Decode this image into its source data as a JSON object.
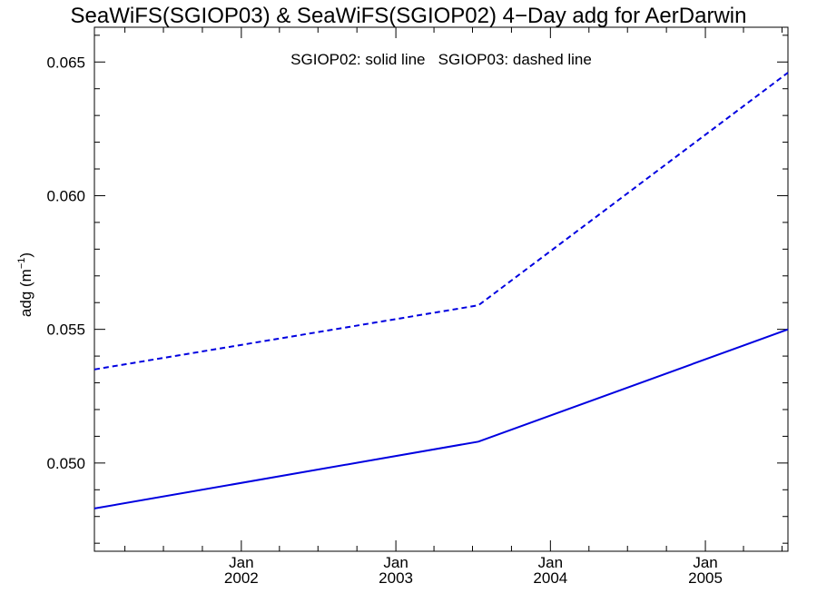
{
  "chart_data": {
    "type": "line",
    "title": "SeaWiFS(SGIOP03) & SeaWiFS(SGIOP02) 4−Day adg for AerDarwin",
    "ylabel": "adg (m",
    "ylabel_sup": "−1",
    "ylabel_close": ")",
    "annotation": "SGIOP02: solid line   SGIOP03: dashed line",
    "xlim": [
      "2001-01-19",
      "2005-07-15"
    ],
    "ylim": [
      0.0467,
      0.0663
    ],
    "x_ticks": [
      {
        "date": "2002-01-01",
        "month": "Jan",
        "year": "2002"
      },
      {
        "date": "2003-01-01",
        "month": "Jan",
        "year": "2003"
      },
      {
        "date": "2004-01-01",
        "month": "Jan",
        "year": "2004"
      },
      {
        "date": "2005-01-01",
        "month": "Jan",
        "year": "2005"
      }
    ],
    "y_ticks": [
      "0.050",
      "0.055",
      "0.060",
      "0.065"
    ],
    "series": [
      {
        "name": "SGIOP02",
        "style": "solid",
        "color": "#0000e0",
        "x": [
          "2001-01-19",
          "2003-07-15",
          "2005-07-15"
        ],
        "y": [
          0.0483,
          0.0508,
          0.055
        ]
      },
      {
        "name": "SGIOP03",
        "style": "dashed",
        "color": "#0000e0",
        "x": [
          "2001-01-19",
          "2003-07-15",
          "2005-07-15"
        ],
        "y": [
          0.0535,
          0.0559,
          0.0646
        ]
      }
    ],
    "grid": false
  }
}
